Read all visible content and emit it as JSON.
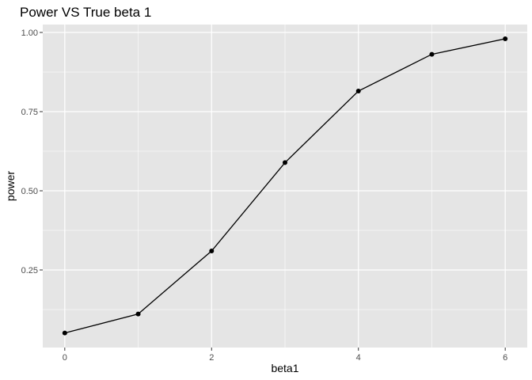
{
  "chart_data": {
    "type": "line",
    "title": "Power VS True beta 1",
    "xlabel": "beta1",
    "ylabel": "power",
    "x": [
      0,
      1,
      2,
      3,
      4,
      5,
      6
    ],
    "series": [
      {
        "values": [
          0.051,
          0.111,
          0.31,
          0.589,
          0.815,
          0.931,
          0.98
        ]
      }
    ],
    "xticks": [
      0,
      2,
      4,
      6
    ],
    "xtick_labels": [
      "0",
      "2",
      "4",
      "6"
    ],
    "yticks": [
      0.25,
      0.5,
      0.75,
      1.0
    ],
    "ytick_labels": [
      "0.25",
      "0.50",
      "0.75",
      "1.00"
    ],
    "xlim": [
      -0.3,
      6.3
    ],
    "ylim": [
      0.005,
      1.025
    ],
    "grid": true,
    "colors": {
      "panel": "#e5e5e5",
      "grid": "#ffffff",
      "line": "#000000",
      "point": "#000000"
    }
  }
}
